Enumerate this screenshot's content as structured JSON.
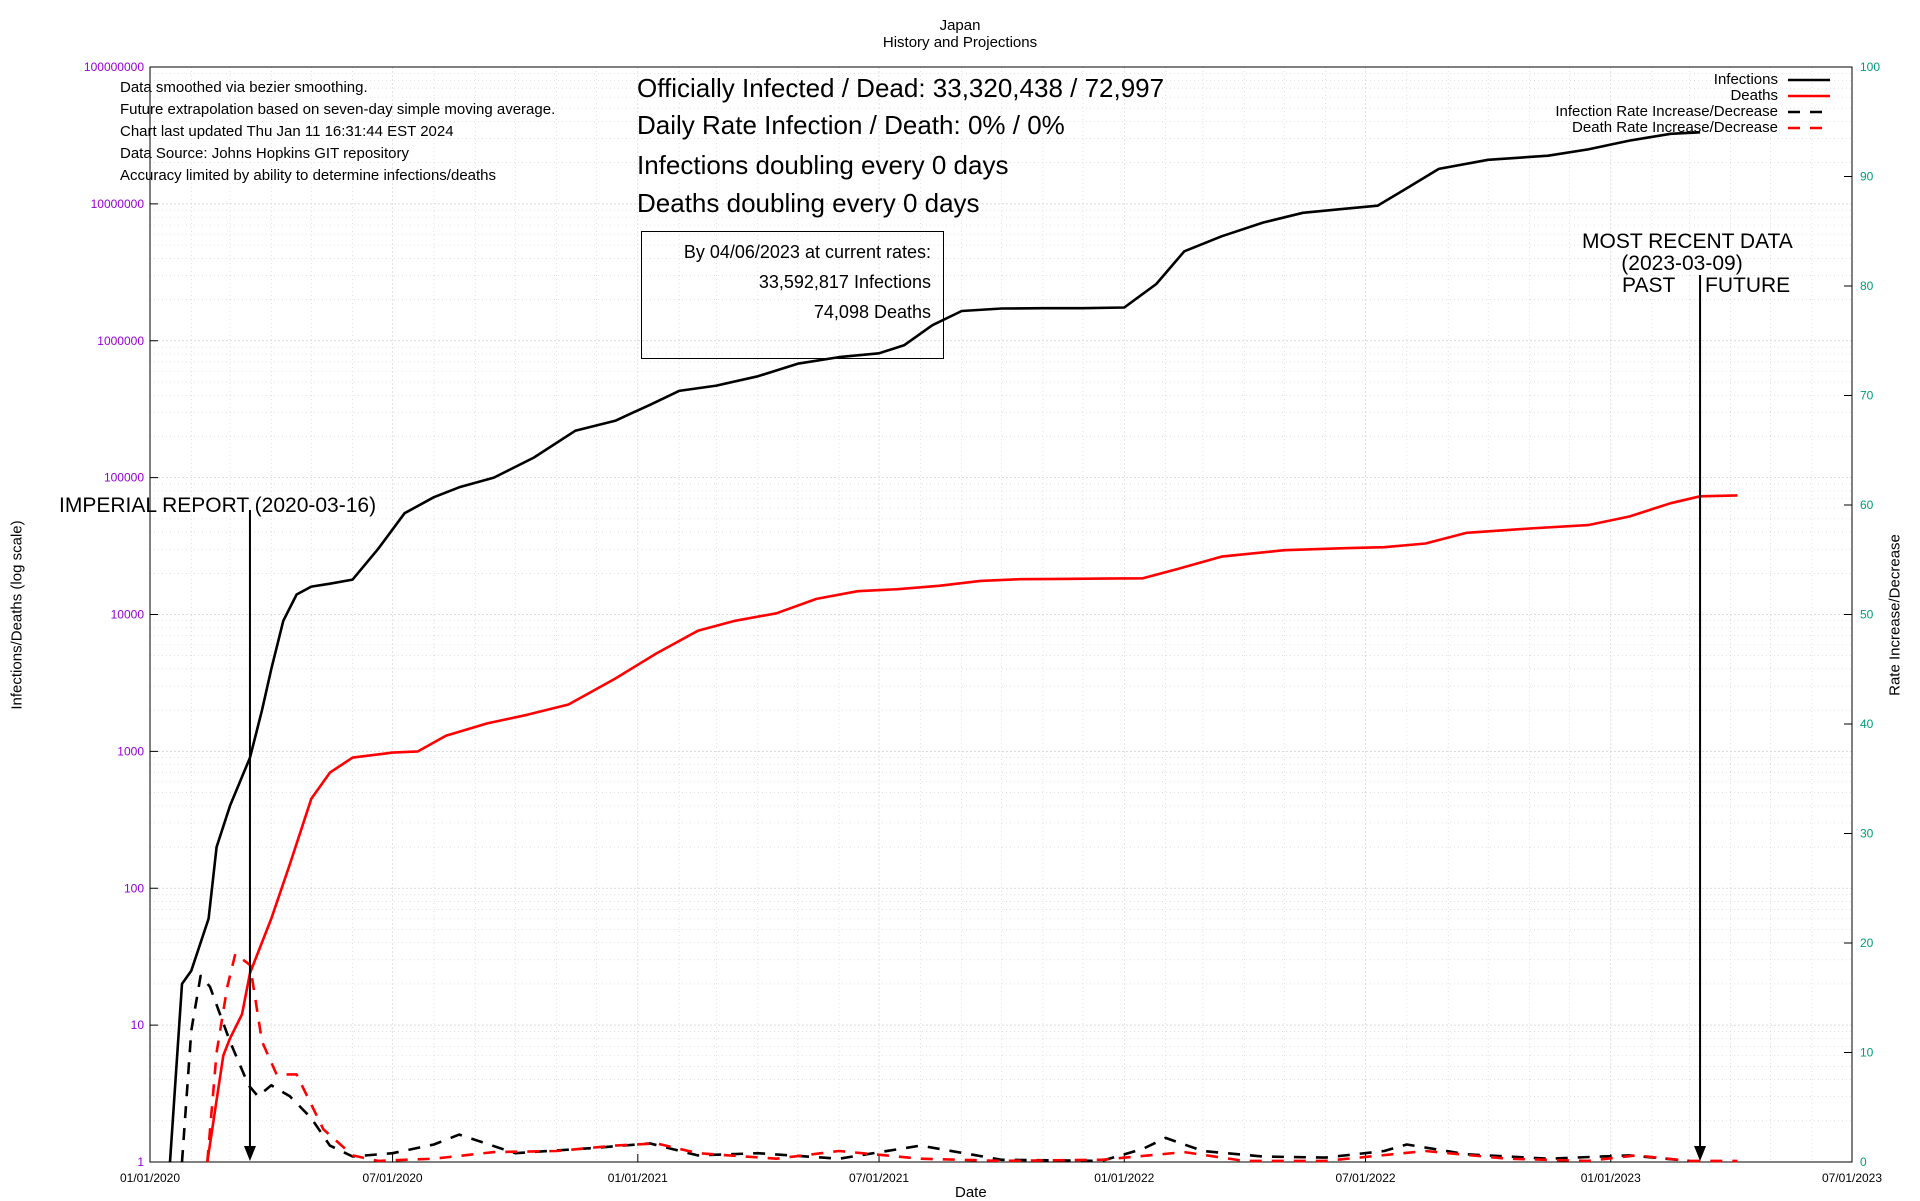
{
  "title": "Japan",
  "subtitle": "History and Projections",
  "notes": [
    "Data smoothed via bezier smoothing.",
    "Future extrapolation based on seven-day simple moving average.",
    "Chart last updated Thu Jan 11 16:31:44 EST 2024",
    "Data Source: Johns Hopkins GIT repository",
    "Accuracy limited by ability to determine infections/deaths"
  ],
  "stats": {
    "officially": "Officially Infected / Dead:  33,320,438 / 72,997",
    "daily_rate": "Daily Rate Infection / Death:  0% / 0%",
    "infections_doubling": "Infections doubling every 0 days",
    "deaths_doubling": "Deaths doubling every 0 days"
  },
  "projection": {
    "heading": "By 04/06/2023 at current rates:",
    "infections": "33,592,817 Infections",
    "deaths": "74,098 Deaths"
  },
  "annotations": {
    "imperial": "IMPERIAL REPORT (2020-03-16)",
    "recent_line1": "MOST RECENT DATA",
    "recent_line2": "(2023-03-09)",
    "past": "PAST",
    "future": "FUTURE"
  },
  "colors": {
    "infections": "#000000",
    "deaths": "#ff0000",
    "left_axis_ticks": "#9400d3",
    "right_axis_ticks": "#009e73",
    "grid": "#d0d0d0"
  },
  "chart_data": {
    "type": "line",
    "title": "Japan",
    "subtitle": "History and Projections",
    "xlabel": "Date",
    "ylabel": "Infections/Deaths (log scale)",
    "y2label": "Rate Increase/Decrease",
    "x_ticks": [
      "01/01/2020",
      "07/01/2020",
      "01/01/2021",
      "07/01/2021",
      "01/01/2022",
      "07/01/2022",
      "01/01/2023",
      "07/01/2023"
    ],
    "xlim": [
      "2020-01-01",
      "2023-07-01"
    ],
    "y_scale": "log",
    "ylim": [
      1,
      100000000
    ],
    "y_ticks": [
      "1",
      "10",
      "100",
      "1000",
      "10000",
      "100000",
      "1000000",
      "10000000",
      "100000000"
    ],
    "y2lim": [
      0,
      100
    ],
    "y2_ticks": [
      "0",
      "10",
      "20",
      "30",
      "40",
      "50",
      "60",
      "70",
      "80",
      "90",
      "100"
    ],
    "grid": true,
    "legend_position": "top-right",
    "series": [
      {
        "name": "Infections",
        "axis": "left",
        "style": "solid",
        "x": [
          "2020-01-16",
          "2020-01-25",
          "2020-02-01",
          "2020-02-14",
          "2020-02-20",
          "2020-03-01",
          "2020-03-16",
          "2020-03-25",
          "2020-04-01",
          "2020-04-10",
          "2020-04-20",
          "2020-05-01",
          "2020-05-15",
          "2020-06-01",
          "2020-06-20",
          "2020-07-10",
          "2020-08-01",
          "2020-08-20",
          "2020-09-15",
          "2020-10-15",
          "2020-11-15",
          "2020-12-15",
          "2021-01-10",
          "2021-02-01",
          "2021-03-01",
          "2021-04-01",
          "2021-05-01",
          "2021-06-01",
          "2021-07-01",
          "2021-07-20",
          "2021-08-10",
          "2021-09-01",
          "2021-10-01",
          "2021-11-01",
          "2021-12-01",
          "2022-01-01",
          "2022-01-25",
          "2022-02-15",
          "2022-03-15",
          "2022-04-15",
          "2022-05-15",
          "2022-06-15",
          "2022-07-10",
          "2022-08-01",
          "2022-08-25",
          "2022-10-01",
          "2022-11-15",
          "2022-12-15",
          "2023-01-15",
          "2023-02-15",
          "2023-03-09"
        ],
        "y": [
          1,
          20,
          25,
          60,
          200,
          400,
          900,
          2000,
          4000,
          9000,
          14000,
          16000,
          16800,
          18000,
          30000,
          55000,
          72000,
          85000,
          100000,
          140000,
          220000,
          260000,
          340000,
          430000,
          470000,
          550000,
          680000,
          760000,
          810000,
          930000,
          1300000,
          1650000,
          1720000,
          1730000,
          1730000,
          1750000,
          2600000,
          4500000,
          5800000,
          7300000,
          8600000,
          9200000,
          9700000,
          13000000,
          18000000,
          21000000,
          22500000,
          25000000,
          29000000,
          32500000,
          33320438
        ]
      },
      {
        "name": "Deaths",
        "axis": "left",
        "style": "solid",
        "x": [
          "2020-02-13",
          "2020-02-25",
          "2020-03-01",
          "2020-03-10",
          "2020-03-16",
          "2020-04-01",
          "2020-04-15",
          "2020-05-01",
          "2020-05-15",
          "2020-06-01",
          "2020-07-01",
          "2020-07-20",
          "2020-08-10",
          "2020-09-10",
          "2020-10-10",
          "2020-11-10",
          "2020-12-15",
          "2021-01-15",
          "2021-02-15",
          "2021-03-15",
          "2021-04-15",
          "2021-05-15",
          "2021-06-15",
          "2021-07-15",
          "2021-08-15",
          "2021-09-15",
          "2021-10-15",
          "2021-11-15",
          "2021-12-15",
          "2022-01-15",
          "2022-02-10",
          "2022-03-15",
          "2022-05-01",
          "2022-06-15",
          "2022-07-15",
          "2022-08-15",
          "2022-09-15",
          "2022-11-01",
          "2022-12-15",
          "2023-01-15",
          "2023-02-15",
          "2023-03-09",
          "2023-04-06"
        ],
        "y": [
          1,
          6,
          8,
          12,
          24,
          60,
          150,
          450,
          700,
          900,
          980,
          1000,
          1300,
          1600,
          1850,
          2200,
          3400,
          5200,
          7600,
          9000,
          10200,
          13000,
          14800,
          15300,
          16200,
          17600,
          18100,
          18200,
          18300,
          18400,
          21500,
          26500,
          29500,
          30500,
          31000,
          33000,
          39500,
          42500,
          45000,
          52000,
          65000,
          72997,
          74098
        ]
      },
      {
        "name": "Infection Rate Increase/Decrease",
        "axis": "right",
        "style": "dashed",
        "x": [
          "2020-01-25",
          "2020-02-01",
          "2020-02-08",
          "2020-02-15",
          "2020-03-01",
          "2020-03-15",
          "2020-03-22",
          "2020-04-01",
          "2020-04-15",
          "2020-05-01",
          "2020-05-15",
          "2020-06-01",
          "2020-07-01",
          "2020-08-01",
          "2020-08-20",
          "2020-10-01",
          "2020-12-01",
          "2021-01-10",
          "2021-02-15",
          "2021-04-01",
          "2021-06-01",
          "2021-08-01",
          "2021-10-01",
          "2021-12-15",
          "2022-01-15",
          "2022-02-01",
          "2022-03-01",
          "2022-04-15",
          "2022-06-01",
          "2022-07-15",
          "2022-08-01",
          "2022-09-15",
          "2022-11-15",
          "2023-01-15",
          "2023-03-01"
        ],
        "y": [
          0,
          12,
          17,
          16,
          11,
          7,
          6,
          7,
          6,
          4,
          1.5,
          0.5,
          0.8,
          1.6,
          2.5,
          0.8,
          1.3,
          1.7,
          0.6,
          0.8,
          0.3,
          1.5,
          0.2,
          0.1,
          1.2,
          2.2,
          1.0,
          0.5,
          0.4,
          1.0,
          1.6,
          0.7,
          0.3,
          0.6,
          0.1
        ]
      },
      {
        "name": "Death Rate Increase/Decrease",
        "axis": "right",
        "style": "dashed",
        "x": [
          "2020-02-13",
          "2020-02-20",
          "2020-02-28",
          "2020-03-05",
          "2020-03-16",
          "2020-03-25",
          "2020-04-05",
          "2020-04-20",
          "2020-05-10",
          "2020-06-01",
          "2020-06-20",
          "2020-08-01",
          "2020-09-15",
          "2020-11-01",
          "2020-12-15",
          "2021-01-15",
          "2021-02-15",
          "2021-04-15",
          "2021-06-01",
          "2021-08-01",
          "2021-10-01",
          "2021-12-15",
          "2022-02-15",
          "2022-04-01",
          "2022-06-01",
          "2022-08-15",
          "2022-10-15",
          "2022-12-15",
          "2023-01-20",
          "2023-03-01",
          "2023-04-06"
        ],
        "y": [
          0,
          10,
          16,
          19,
          18,
          11,
          8,
          8,
          3,
          0.6,
          0.1,
          0.3,
          0.9,
          1.0,
          1.5,
          1.7,
          0.8,
          0.3,
          1.0,
          0.3,
          0.1,
          0.2,
          0.9,
          0.1,
          0.1,
          1.0,
          0.3,
          0.1,
          0.6,
          0.1,
          0.1
        ]
      }
    ],
    "events": [
      {
        "label": "IMPERIAL REPORT (2020-03-16)",
        "date": "2020-03-16"
      },
      {
        "label": "MOST RECENT DATA (2023-03-09)",
        "date": "2023-03-09"
      }
    ]
  }
}
